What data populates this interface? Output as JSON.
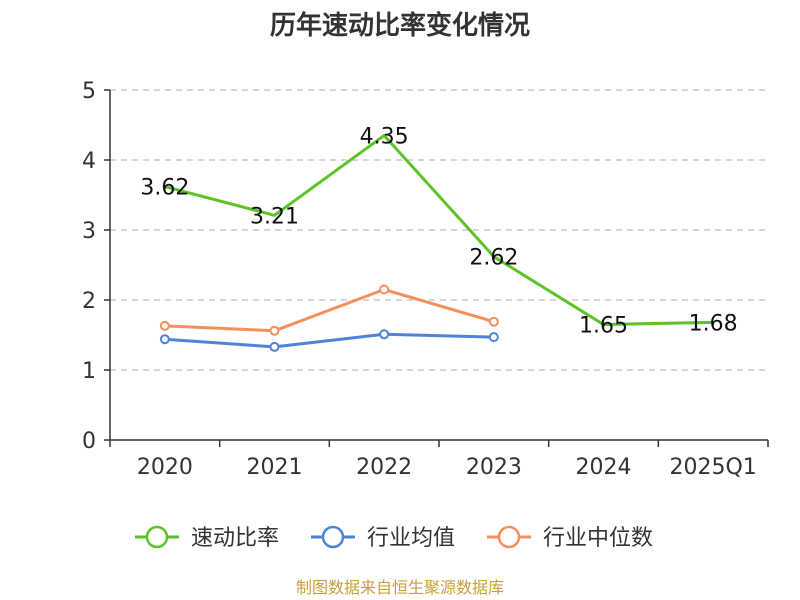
{
  "chart_data": {
    "type": "line",
    "title": "历年速动比率变化情况",
    "categories": [
      "2020",
      "2021",
      "2022",
      "2023",
      "2024",
      "2025Q1"
    ],
    "series": [
      {
        "name": "速动比率",
        "color": "#5cc226",
        "values": [
          3.62,
          3.21,
          4.35,
          2.62,
          1.65,
          1.68
        ],
        "show_labels": true
      },
      {
        "name": "行业均值",
        "color": "#4f83d9",
        "values": [
          1.44,
          1.33,
          1.51,
          1.47,
          null,
          null
        ],
        "show_labels": false
      },
      {
        "name": "行业中位数",
        "color": "#f5905c",
        "values": [
          1.63,
          1.56,
          2.15,
          1.69,
          null,
          null
        ],
        "show_labels": false
      }
    ],
    "data_labels": [
      "3.62",
      "3.21",
      "4.35",
      "2.62",
      "1.65",
      "1.68"
    ],
    "y_ticks": [
      "0",
      "1",
      "2",
      "3",
      "4",
      "5"
    ],
    "ylim": [
      0,
      5
    ],
    "grid": true,
    "legend_position": "bottom",
    "source": "制图数据来自恒生聚源数据库"
  }
}
